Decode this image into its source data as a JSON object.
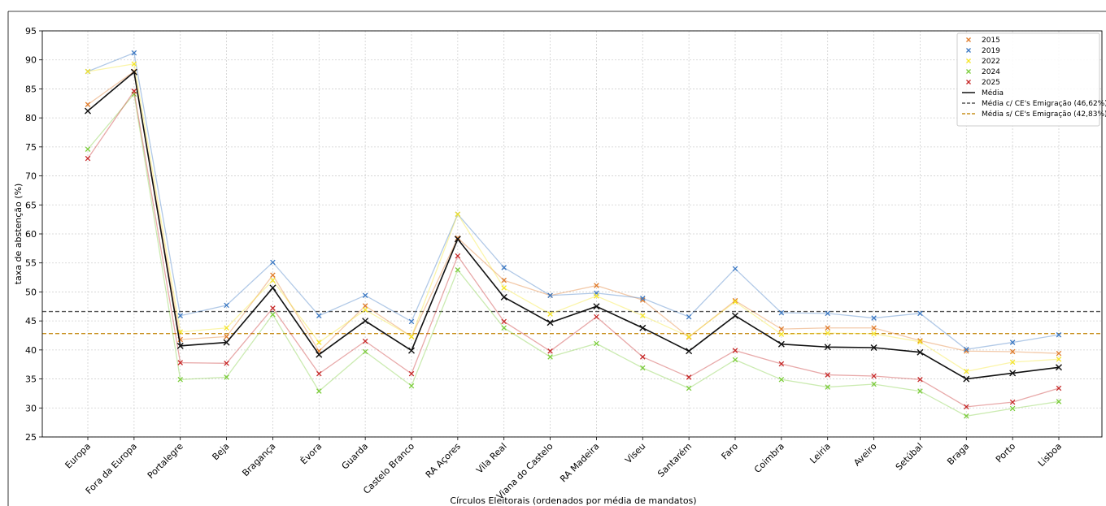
{
  "chart_data": {
    "type": "line",
    "xlabel": "Círculos Eleitorais (ordenados por média de mandatos)",
    "ylabel": "taxa de abstenção (%)",
    "ylim": [
      25,
      95
    ],
    "yticks": [
      25,
      30,
      35,
      40,
      45,
      50,
      55,
      60,
      65,
      70,
      75,
      80,
      85,
      90,
      95
    ],
    "grid": true,
    "legend_position": "top-right",
    "categories": [
      "Europa",
      "Fora da Europa",
      "Portalegre",
      "Beja",
      "Bragança",
      "Évora",
      "Guarda",
      "Castelo Branco",
      "RA Açores",
      "Vila Real",
      "Viana do Castelo",
      "RA Madeira",
      "Viseu",
      "Santarém",
      "Faro",
      "Coimbra",
      "Leiria",
      "Aveiro",
      "Setúbal",
      "Braga",
      "Porto",
      "Lisboa"
    ],
    "series": [
      {
        "name": "2015",
        "color": "#e07b2a",
        "values": [
          82.3,
          88.0,
          41.8,
          42.3,
          52.9,
          39.8,
          47.6,
          42.3,
          59.3,
          52.0,
          49.4,
          51.1,
          48.6,
          42.2,
          48.5,
          43.6,
          43.8,
          43.8,
          41.6,
          39.8,
          39.7,
          39.4
        ]
      },
      {
        "name": "2019",
        "color": "#3b78c3",
        "values": [
          88.0,
          91.2,
          45.9,
          47.7,
          55.1,
          45.9,
          49.4,
          44.9,
          63.4,
          54.2,
          49.4,
          49.8,
          48.9,
          45.7,
          54.0,
          46.4,
          46.3,
          45.5,
          46.3,
          40.1,
          41.3,
          42.6
        ]
      },
      {
        "name": "2022",
        "color": "#f5e52a",
        "values": [
          88.0,
          89.3,
          43.1,
          43.8,
          52.0,
          41.3,
          46.9,
          42.3,
          63.4,
          50.7,
          46.2,
          49.3,
          45.9,
          42.3,
          48.3,
          42.7,
          42.9,
          42.8,
          41.4,
          36.3,
          37.9,
          38.4
        ]
      },
      {
        "name": "2024",
        "color": "#7ccd3c",
        "values": [
          74.6,
          84.1,
          34.9,
          35.3,
          46.1,
          32.9,
          39.7,
          33.8,
          53.8,
          43.8,
          38.8,
          41.1,
          36.9,
          33.4,
          38.3,
          34.9,
          33.6,
          34.1,
          32.9,
          28.6,
          29.9,
          31.1
        ]
      },
      {
        "name": "2025",
        "color": "#c62828",
        "values": [
          73.0,
          84.6,
          37.8,
          37.7,
          47.2,
          35.9,
          41.5,
          35.9,
          56.2,
          44.9,
          39.8,
          45.7,
          38.8,
          35.3,
          39.9,
          37.6,
          35.7,
          35.5,
          34.9,
          30.2,
          31.0,
          33.4
        ]
      },
      {
        "name": "Média",
        "color": "#111111",
        "values": [
          81.2,
          87.9,
          40.7,
          41.3,
          50.7,
          39.2,
          45.0,
          39.9,
          59.1,
          49.1,
          44.7,
          47.5,
          43.8,
          39.8,
          45.9,
          41.0,
          40.5,
          40.4,
          39.6,
          35.0,
          36.0,
          37.0
        ]
      }
    ],
    "hlines": [
      {
        "name": "Média c/ CE's Emigração (46,62%)",
        "value": 46.62,
        "color": "#555555"
      },
      {
        "name": "Média s/ CE's Emigração (42,83%)",
        "value": 42.83,
        "color": "#c8901e"
      }
    ]
  }
}
